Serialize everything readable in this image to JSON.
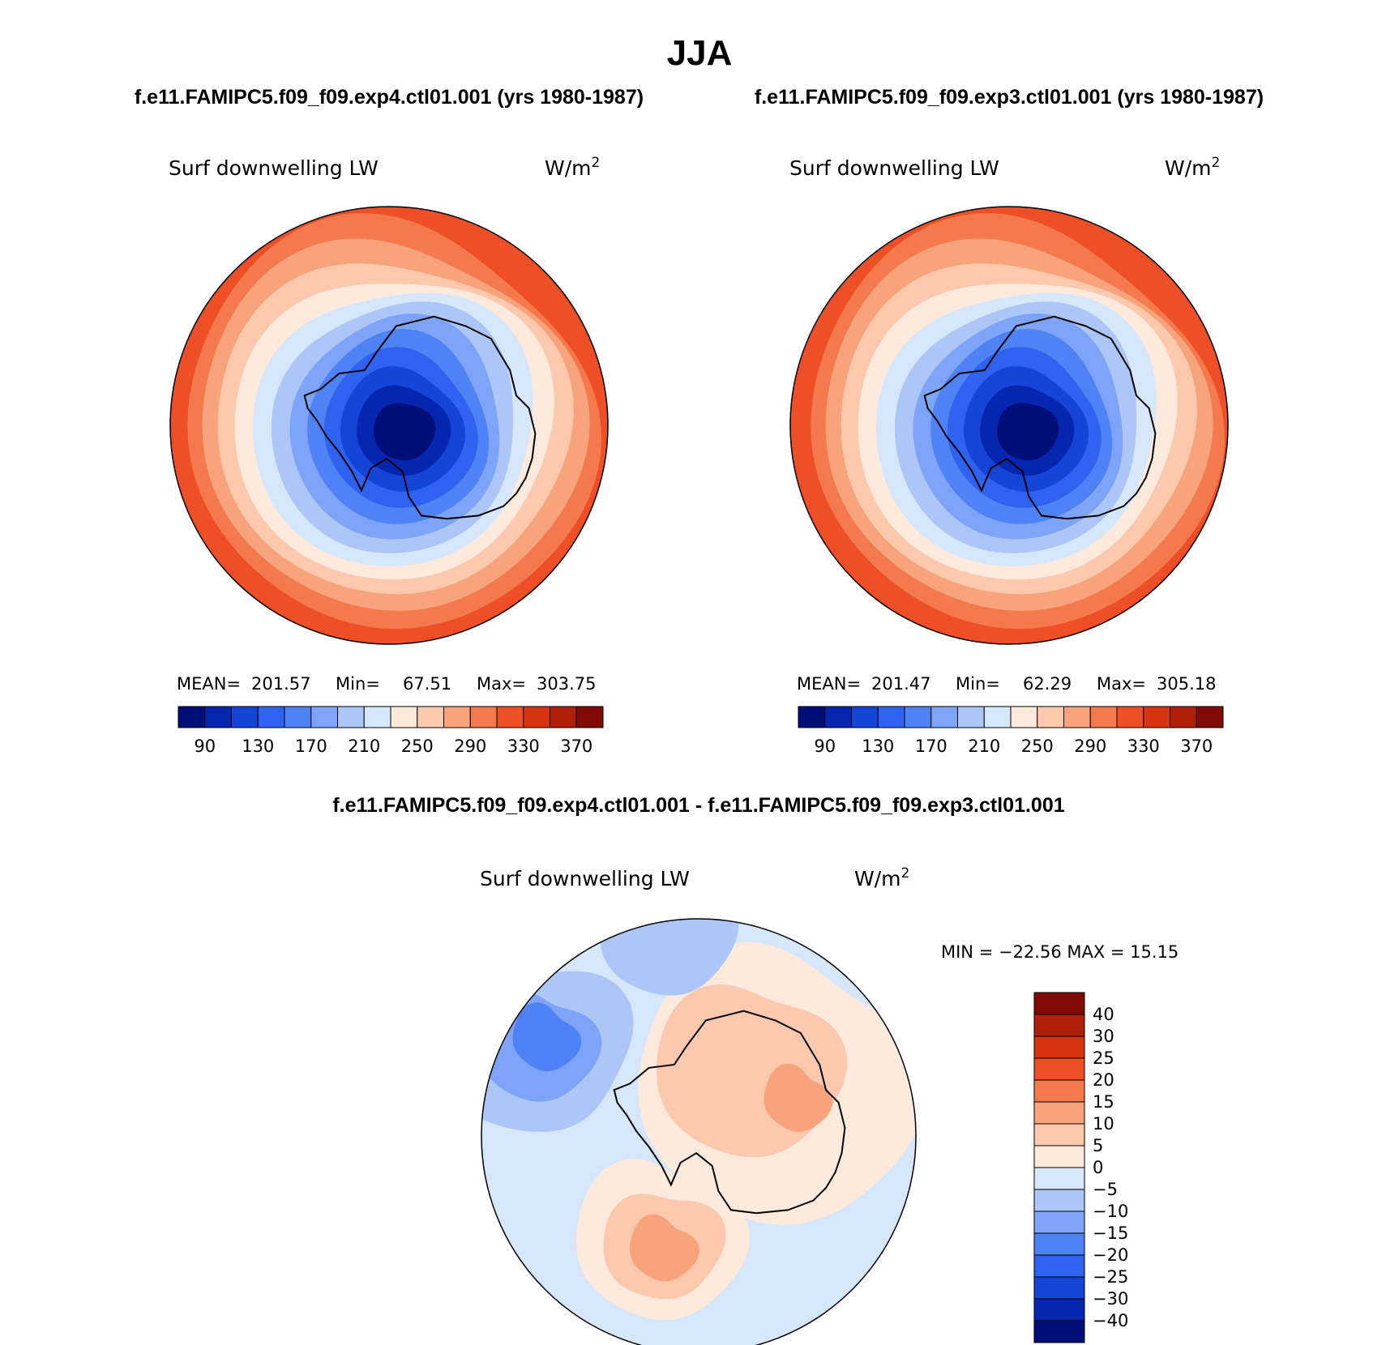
{
  "title": "JJA",
  "colors": {
    "abs_palette": [
      "#000e7a",
      "#0726b0",
      "#1544d9",
      "#2d63f0",
      "#4f82f5",
      "#7ea4f7",
      "#adc6f8",
      "#d6e6fb",
      "#fdeadc",
      "#fcc9ae",
      "#f7a47c",
      "#f47a4d",
      "#ee4f26",
      "#d83412",
      "#b01f0a",
      "#820a04"
    ],
    "diff_palette": [
      "#000e7a",
      "#0726b0",
      "#1544d9",
      "#2d63f0",
      "#4f82f5",
      "#7ea4f7",
      "#adc6f8",
      "#d6e6fb",
      "#fdeadc",
      "#fcc9ae",
      "#f7a47c",
      "#f47a4d",
      "#ee4f26",
      "#d83412",
      "#b01f0a",
      "#820a04"
    ]
  },
  "panels": [
    {
      "case_title": "f.e11.FAMIPC5.f09_f09.exp4.ctl01.001 (yrs 1980-1987)",
      "variable": "Surf downwelling LW",
      "units_base": "W/m",
      "units_exp": "2",
      "stats": {
        "mean_label": "MEAN=",
        "mean": "201.57",
        "min_label": "Min=",
        "min": "67.51",
        "max_label": "Max=",
        "max": "303.75"
      }
    },
    {
      "case_title": "f.e11.FAMIPC5.f09_f09.exp3.ctl01.001 (yrs 1980-1987)",
      "variable": "Surf downwelling LW",
      "units_base": "W/m",
      "units_exp": "2",
      "stats": {
        "mean_label": "MEAN=",
        "mean": "201.47",
        "min_label": "Min=",
        "min": "62.29",
        "max_label": "Max=",
        "max": "305.18"
      }
    }
  ],
  "diff_panel": {
    "case_title": "f.e11.FAMIPC5.f09_f09.exp4.ctl01.001 - f.e11.FAMIPC5.f09_f09.exp3.ctl01.001",
    "variable": "Surf downwelling LW",
    "units_base": "W/m",
    "units_exp": "2",
    "minmax_label": "MIN = −22.56 MAX =  15.15"
  },
  "chart_data": [
    {
      "type": "heatmap",
      "projection": "south polar stereographic",
      "variable": "Surf downwelling LW",
      "units": "W/m2",
      "colorbar_ticks": [
        90,
        130,
        170,
        210,
        250,
        290,
        330,
        370
      ],
      "colorbar_tick_labels": [
        "90",
        "130",
        "170",
        "210",
        "250",
        "290",
        "330",
        "370"
      ],
      "colorbar_levels": 16,
      "mean": 201.57,
      "min": 67.51,
      "max": 303.75
    },
    {
      "type": "heatmap",
      "projection": "south polar stereographic",
      "variable": "Surf downwelling LW",
      "units": "W/m2",
      "colorbar_ticks": [
        90,
        130,
        170,
        210,
        250,
        290,
        330,
        370
      ],
      "colorbar_tick_labels": [
        "90",
        "130",
        "170",
        "210",
        "250",
        "290",
        "330",
        "370"
      ],
      "colorbar_levels": 16,
      "mean": 201.47,
      "min": 62.29,
      "max": 305.18
    },
    {
      "type": "heatmap",
      "projection": "south polar stereographic",
      "variable": "Surf downwelling LW",
      "units": "W/m2",
      "colorbar_ticks": [
        -40,
        -30,
        -25,
        -20,
        -15,
        -10,
        -5,
        0,
        5,
        10,
        15,
        20,
        25,
        30,
        40
      ],
      "colorbar_tick_labels": [
        "−40",
        "−30",
        "−25",
        "−20",
        "−15",
        "−10",
        "−5",
        "0",
        "5",
        "10",
        "15",
        "20",
        "25",
        "30",
        "40"
      ],
      "colorbar_levels": 16,
      "min": -22.56,
      "max": 15.15
    }
  ]
}
